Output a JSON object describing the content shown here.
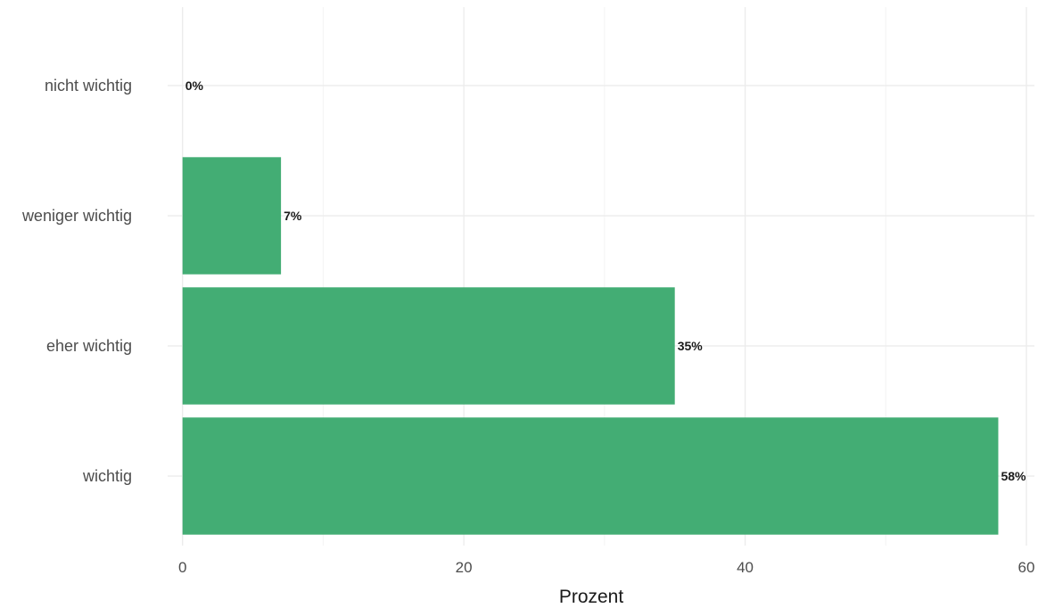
{
  "chart_data": {
    "type": "bar",
    "orientation": "horizontal",
    "categories": [
      "nicht wichtig",
      "weniger wichtig",
      "eher wichtig",
      "wichtig"
    ],
    "values": [
      0,
      7,
      35,
      58
    ],
    "value_labels": [
      "0%",
      "7%",
      "35%",
      "58%"
    ],
    "title": "",
    "xlabel": "Prozent",
    "ylabel": "",
    "xlim": [
      0,
      60
    ],
    "x_ticks": [
      0,
      20,
      40,
      60
    ],
    "x_tick_labels": [
      "0",
      "20",
      "40",
      "60"
    ],
    "grid": true,
    "bar_color": "#43ad74"
  }
}
